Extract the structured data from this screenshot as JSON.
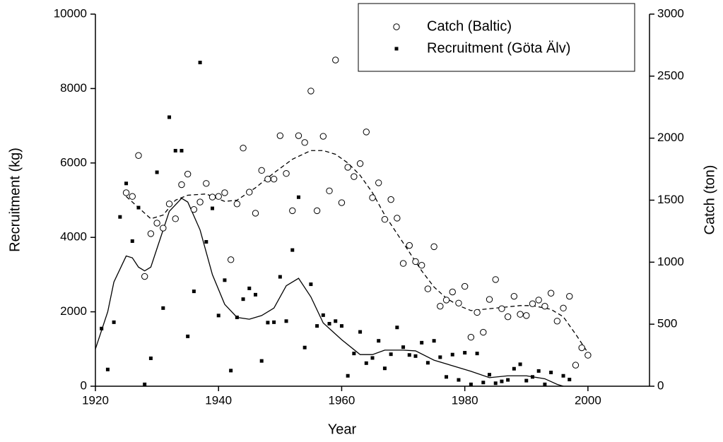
{
  "chart_data": {
    "type": "scatter",
    "xlabel": "Year",
    "ylabel": "Recruitment (kg)",
    "y2label": "Catch (ton)",
    "xlim": [
      1920,
      2010
    ],
    "xticks": [
      1920,
      1940,
      1960,
      1980,
      2000
    ],
    "ylim": [
      0,
      10000
    ],
    "yticks": [
      0,
      2000,
      4000,
      6000,
      8000,
      10000
    ],
    "y2lim": [
      0,
      3000
    ],
    "y2ticks": [
      0,
      500,
      1000,
      1500,
      2000,
      2500,
      3000
    ],
    "legend": "upper right",
    "grid": false,
    "series": [
      {
        "name": "Catch (Baltic)",
        "marker": "circle",
        "color": "#000000",
        "axis": "y2",
        "x": [
          1925,
          1926,
          1927,
          1928,
          1929,
          1930,
          1931,
          1932,
          1933,
          1934,
          1935,
          1936,
          1937,
          1938,
          1939,
          1940,
          1941,
          1942,
          1943,
          1944,
          1945,
          1946,
          1947,
          1948,
          1949,
          1950,
          1951,
          1952,
          1953,
          1954,
          1955,
          1956,
          1957,
          1958,
          1959,
          1960,
          1961,
          1962,
          1963,
          1964,
          1965,
          1966,
          1967,
          1968,
          1969,
          1970,
          1971,
          1972,
          1973,
          1974,
          1975,
          1976,
          1977,
          1978,
          1979,
          1980,
          1981,
          1982,
          1983,
          1984,
          1985,
          1986,
          1987,
          1988,
          1989,
          1990,
          1991,
          1992,
          1993,
          1994,
          1995,
          1996,
          1997,
          1998,
          1999,
          2000
        ],
        "values": [
          1560,
          1530,
          1860,
          885,
          1230,
          1315,
          1275,
          1470,
          1350,
          1625,
          1710,
          1425,
          1485,
          1635,
          1525,
          1530,
          1560,
          1020,
          1470,
          1920,
          1565,
          1395,
          1740,
          1670,
          1670,
          2020,
          1715,
          1415,
          2020,
          1965,
          2380,
          1415,
          2015,
          1575,
          2630,
          1480,
          1765,
          1690,
          1795,
          2050,
          1520,
          1640,
          1345,
          1505,
          1355,
          990,
          1135,
          1005,
          975,
          785,
          1125,
          645,
          695,
          760,
          670,
          805,
          395,
          595,
          435,
          700,
          860,
          625,
          560,
          725,
          580,
          570,
          665,
          695,
          645,
          750,
          525,
          630,
          725,
          170,
          310,
          250
        ]
      },
      {
        "name": "Recruitment (Göta Älv)",
        "marker": "square",
        "color": "#000000",
        "axis": "y",
        "x": [
          1921,
          1922,
          1923,
          1924,
          1925,
          1926,
          1927,
          1928,
          1929,
          1930,
          1931,
          1932,
          1933,
          1934,
          1935,
          1936,
          1937,
          1938,
          1939,
          1940,
          1941,
          1942,
          1943,
          1944,
          1945,
          1946,
          1947,
          1948,
          1949,
          1950,
          1951,
          1952,
          1953,
          1954,
          1955,
          1956,
          1957,
          1958,
          1959,
          1960,
          1961,
          1962,
          1963,
          1964,
          1965,
          1966,
          1967,
          1968,
          1969,
          1970,
          1971,
          1972,
          1973,
          1974,
          1975,
          1976,
          1977,
          1978,
          1979,
          1980,
          1981,
          1982,
          1983,
          1984,
          1985,
          1986,
          1987,
          1988,
          1989,
          1990,
          1991,
          1992,
          1993,
          1994,
          1996,
          1997
        ],
        "values": [
          1550,
          450,
          1720,
          4550,
          5450,
          3900,
          4800,
          50,
          750,
          5750,
          2100,
          7230,
          6330,
          6330,
          1340,
          2550,
          8700,
          3880,
          4780,
          1900,
          2850,
          420,
          1850,
          2340,
          2630,
          2460,
          680,
          1710,
          1720,
          2940,
          1750,
          3660,
          5080,
          1040,
          2740,
          1620,
          1910,
          1680,
          1750,
          1620,
          280,
          880,
          1460,
          620,
          760,
          1220,
          480,
          860,
          1580,
          1050,
          840,
          810,
          1170,
          630,
          1220,
          780,
          250,
          850,
          170,
          900,
          50,
          880,
          100,
          310,
          80,
          130,
          170,
          470,
          590,
          150,
          250,
          410,
          50,
          370,
          280,
          180
        ]
      }
    ],
    "lines": [
      {
        "style": "solid",
        "axis": "y",
        "x": [
          1920,
          1922,
          1923,
          1925,
          1926,
          1927,
          1928,
          1929,
          1930,
          1932,
          1934,
          1935,
          1937,
          1939,
          1941,
          1943,
          1945,
          1947,
          1949,
          1951,
          1953,
          1955,
          1957,
          1960,
          1963,
          1965,
          1967,
          1970,
          1972,
          1975,
          1978,
          1981,
          1984,
          1987,
          1990,
          1993,
          1995,
          1996
        ],
        "values": [
          1000,
          2000,
          2800,
          3500,
          3450,
          3200,
          3100,
          3200,
          3700,
          4700,
          5050,
          4950,
          4200,
          3000,
          2200,
          1850,
          1800,
          1900,
          2100,
          2700,
          2900,
          2400,
          1700,
          1250,
          850,
          850,
          970,
          970,
          950,
          700,
          550,
          400,
          230,
          280,
          280,
          200,
          50,
          0
        ]
      },
      {
        "style": "dashed",
        "axis": "y2",
        "x": [
          1925,
          1927,
          1929,
          1931,
          1933,
          1935,
          1938,
          1941,
          1943,
          1946,
          1949,
          1952,
          1955,
          1957,
          1959,
          1961,
          1963,
          1965,
          1967,
          1969,
          1971,
          1973,
          1975,
          1977,
          1979,
          1981,
          1983,
          1986,
          1989,
          1991,
          1994,
          1996,
          1998,
          2000
        ],
        "values": [
          1530,
          1440,
          1350,
          1380,
          1500,
          1540,
          1550,
          1490,
          1500,
          1600,
          1720,
          1830,
          1900,
          1900,
          1870,
          1800,
          1700,
          1560,
          1380,
          1230,
          1080,
          930,
          800,
          710,
          650,
          610,
          620,
          635,
          650,
          650,
          620,
          560,
          420,
          270
        ]
      }
    ]
  }
}
